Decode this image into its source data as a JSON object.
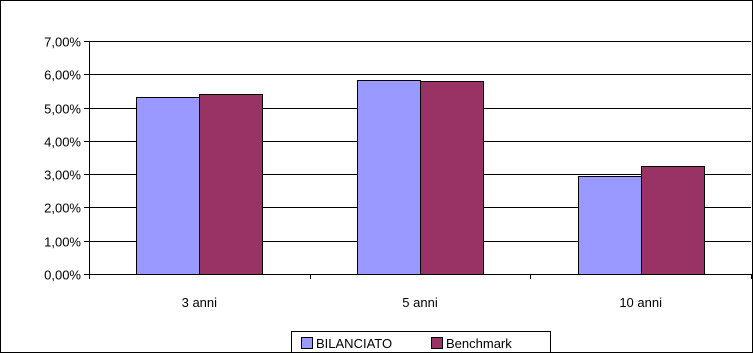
{
  "chart_data": {
    "type": "bar",
    "title": "",
    "xlabel": "",
    "ylabel": "",
    "categories": [
      "3 anni",
      "5 anni",
      "10 anni"
    ],
    "series": [
      {
        "name": "BILANCIATO",
        "values": [
          5.33,
          5.83,
          2.95
        ],
        "color": "#9999ff"
      },
      {
        "name": "Benchmark",
        "values": [
          5.41,
          5.8,
          3.24
        ],
        "color": "#993366"
      }
    ],
    "ylim": [
      0,
      7
    ],
    "yticks": [
      {
        "value": 0,
        "label": "0,00%"
      },
      {
        "value": 1,
        "label": "1,00%"
      },
      {
        "value": 2,
        "label": "2,00%"
      },
      {
        "value": 3,
        "label": "3,00%"
      },
      {
        "value": 4,
        "label": "4,00%"
      },
      {
        "value": 5,
        "label": "5,00%"
      },
      {
        "value": 6,
        "label": "6,00%"
      },
      {
        "value": 7,
        "label": "7,00%"
      }
    ],
    "grid": true,
    "legend_position": "bottom-right"
  }
}
